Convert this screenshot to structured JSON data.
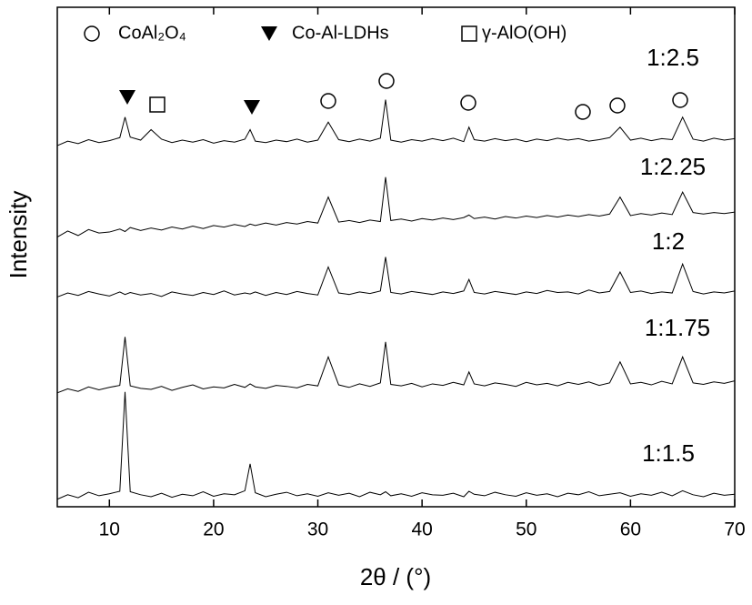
{
  "chart_data": {
    "type": "line",
    "legend": [
      "CoAl₂O₄",
      "Co-Al-LDHs",
      "γ-AlO(OH)"
    ],
    "x_label": "2θ / (°)",
    "y_label": "Intensity",
    "xlim": [
      5,
      70
    ],
    "xticks": [
      10,
      20,
      30,
      40,
      50,
      60,
      70
    ],
    "ylim": [
      0,
      100
    ],
    "x": [
      5,
      6,
      7,
      8,
      9,
      10,
      11,
      11.5,
      12,
      13,
      14,
      15,
      16,
      17,
      18,
      19,
      20,
      21,
      22,
      23,
      23.5,
      24,
      25,
      26,
      27,
      28,
      29,
      30,
      31,
      32,
      33,
      34,
      35,
      36,
      36.5,
      37,
      38,
      39,
      40,
      41,
      42,
      43,
      44,
      44.5,
      45,
      46,
      47,
      48,
      49,
      50,
      51,
      52,
      53,
      54,
      55,
      56,
      57,
      58,
      59,
      60,
      61,
      62,
      63,
      64,
      65,
      66,
      67,
      68,
      69,
      70
    ],
    "series": [
      {
        "name": "1:1.5",
        "color": "#000000",
        "values": [
          1.5,
          2.4,
          1.8,
          2.9,
          2.2,
          2.6,
          3.1,
          23,
          3.0,
          2.4,
          2.0,
          2.7,
          1.9,
          2.5,
          2.2,
          3.0,
          2.1,
          2.6,
          2.4,
          3.2,
          8.6,
          2.8,
          2.0,
          2.5,
          2.9,
          2.2,
          2.6,
          2.1,
          2.8,
          2.3,
          2.7,
          2.0,
          2.9,
          2.4,
          3.0,
          2.2,
          2.6,
          2.1,
          2.8,
          2.4,
          2.3,
          2.7,
          2.0,
          3.1,
          2.5,
          2.2,
          2.9,
          2.4,
          2.1,
          2.8,
          2.3,
          2.6,
          2.0,
          2.7,
          2.4,
          3.0,
          2.2,
          2.5,
          2.8,
          2.1,
          2.6,
          2.3,
          2.9,
          2.2,
          3.2,
          2.4,
          2.0,
          2.7,
          2.3,
          2.5
        ]
      },
      {
        "name": "1:1.75",
        "color": "#000000",
        "values": [
          22.8,
          23.6,
          23.1,
          24.0,
          23.4,
          23.9,
          24.3,
          34,
          24.2,
          23.7,
          23.5,
          24.1,
          23.3,
          23.9,
          24.4,
          23.6,
          24.0,
          23.8,
          24.5,
          23.9,
          24.6,
          24.0,
          23.7,
          24.3,
          24.1,
          23.8,
          24.5,
          24.2,
          30,
          24.4,
          23.9,
          24.6,
          24.1,
          24.8,
          33,
          24.5,
          24.2,
          24.7,
          24.0,
          24.6,
          24.3,
          24.9,
          24.4,
          27,
          24.6,
          24.2,
          24.8,
          24.5,
          24.1,
          24.9,
          24.4,
          24.7,
          24.2,
          24.9,
          24.5,
          25.0,
          24.3,
          24.8,
          29,
          24.6,
          24.9,
          24.4,
          25.1,
          24.6,
          30,
          24.8,
          24.5,
          25.0,
          24.7,
          25.2
        ]
      },
      {
        "name": "1:2",
        "color": "#000000",
        "values": [
          42.0,
          42.8,
          42.3,
          43.1,
          42.6,
          42.2,
          43.0,
          42.5,
          42.9,
          42.4,
          42.7,
          42.1,
          43.0,
          42.6,
          42.3,
          42.9,
          42.5,
          43.2,
          42.4,
          42.8,
          42.6,
          43.0,
          42.3,
          42.9,
          42.5,
          43.1,
          42.7,
          42.4,
          48,
          42.8,
          42.5,
          43.0,
          42.7,
          43.2,
          50,
          42.9,
          42.6,
          43.1,
          42.8,
          42.5,
          43.0,
          42.7,
          43.2,
          45.5,
          42.9,
          42.6,
          43.1,
          42.8,
          42.5,
          43.0,
          42.7,
          43.3,
          42.9,
          43.0,
          42.6,
          43.4,
          42.8,
          43.1,
          47,
          42.9,
          43.2,
          42.7,
          43.0,
          42.8,
          48.6,
          43.1,
          42.6,
          43.0,
          42.8,
          43.2
        ]
      },
      {
        "name": "1:2.25",
        "color": "#000000",
        "values": [
          54.0,
          55.2,
          54.3,
          55.5,
          54.8,
          55.0,
          55.6,
          55.1,
          55.9,
          55.3,
          55.8,
          55.4,
          56.0,
          55.6,
          56.2,
          55.7,
          56.3,
          56.0,
          56.5,
          56.1,
          56.6,
          56.3,
          56.8,
          56.4,
          56.9,
          56.6,
          57.1,
          56.8,
          62,
          57.0,
          57.3,
          56.9,
          57.4,
          57.1,
          66,
          57.3,
          57.6,
          57.2,
          57.7,
          57.4,
          57.8,
          57.5,
          57.9,
          58.4,
          57.7,
          58.0,
          57.6,
          58.1,
          57.8,
          58.2,
          57.9,
          58.3,
          58.0,
          58.4,
          58.1,
          58.5,
          58.2,
          58.6,
          62,
          58.3,
          58.7,
          58.4,
          58.8,
          58.5,
          63,
          58.9,
          58.6,
          58.9,
          58.7,
          59.0
        ]
      },
      {
        "name": "1:2.5",
        "color": "#000000",
        "values": [
          72.3,
          73.2,
          72.7,
          73.5,
          72.9,
          73.3,
          73.9,
          78,
          74.0,
          73.4,
          75.5,
          73.6,
          72.9,
          73.4,
          73.0,
          73.5,
          72.8,
          73.3,
          73.0,
          73.6,
          75.5,
          73.2,
          72.9,
          73.4,
          73.1,
          73.6,
          73.0,
          73.4,
          77,
          73.5,
          73.1,
          73.6,
          73.2,
          73.8,
          81.5,
          73.4,
          73.0,
          73.5,
          73.2,
          73.7,
          73.3,
          73.8,
          73.1,
          76,
          73.5,
          73.2,
          73.7,
          73.3,
          73.6,
          73.1,
          73.6,
          73.3,
          73.8,
          73.4,
          73.7,
          73.2,
          73.5,
          73.9,
          76,
          73.4,
          73.8,
          73.3,
          73.7,
          73.5,
          78,
          73.6,
          73.2,
          73.8,
          73.4,
          73.7
        ]
      }
    ]
  }
}
